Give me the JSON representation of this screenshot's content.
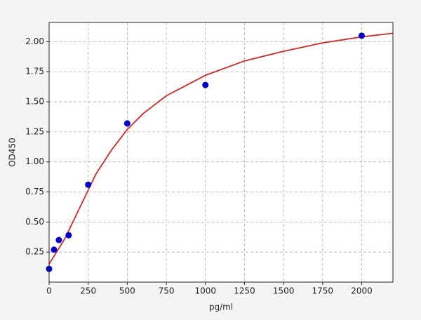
{
  "chart_data": {
    "type": "scatter",
    "x_label": "pg/ml",
    "y_label": "OD450",
    "xlim": [
      0,
      2200
    ],
    "ylim": [
      0,
      2.16
    ],
    "xticks": [
      0,
      250,
      500,
      750,
      1000,
      1250,
      1500,
      1750,
      2000
    ],
    "yticks": [
      0.25,
      {
        "value": 0.5,
        "label": "0.50"
      },
      0.75,
      {
        "value": 1,
        "label": "1.00"
      },
      1.25,
      {
        "value": 1.5,
        "label": "1.50"
      },
      1.75,
      {
        "value": 2,
        "label": "2.00"
      }
    ],
    "grid": true,
    "series": [
      {
        "mode": "markers",
        "color": "#0000cc",
        "x": [
          0,
          31.25,
          62.5,
          125,
          250,
          500,
          1000,
          2000
        ],
        "values": [
          0.11,
          0.27,
          0.35,
          0.39,
          0.81,
          1.32,
          1.64,
          2.05
        ]
      },
      {
        "mode": "line",
        "color": "#d62728",
        "x": [
          0,
          100,
          200,
          300,
          400,
          500,
          600,
          750,
          1000,
          1250,
          1500,
          1750,
          2000,
          2200
        ],
        "values": [
          0.15,
          0.36,
          0.63,
          0.9,
          1.1,
          1.27,
          1.4,
          1.55,
          1.72,
          1.84,
          1.92,
          1.99,
          2.04,
          2.07
        ]
      }
    ]
  }
}
